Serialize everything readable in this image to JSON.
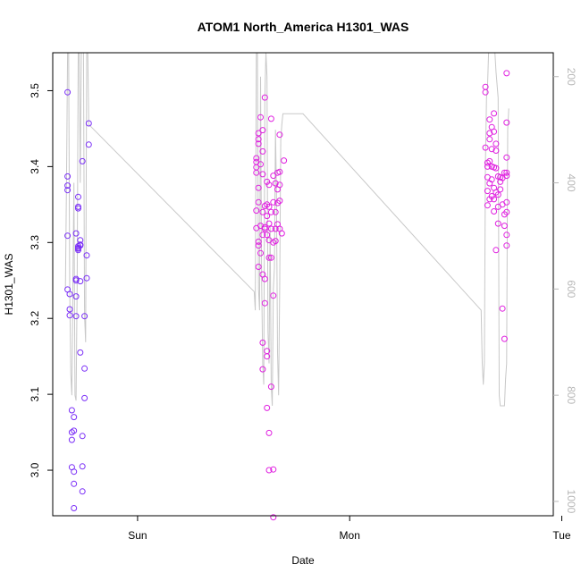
{
  "chart_data": {
    "type": "scatter",
    "title": "ATOM1 North_America H1301_WAS",
    "xlabel": "Date",
    "ylabel": "H1301_WAS",
    "x_ticks": [
      "Sun",
      "Mon",
      "Tue"
    ],
    "y_ticks": [
      "3.0",
      "3.1",
      "3.2",
      "3.3",
      "3.4",
      "3.5"
    ],
    "ylim": [
      2.94,
      3.55
    ],
    "y2_ticks": [
      "200",
      "400",
      "600",
      "800",
      "1000"
    ],
    "y2lim": [
      1027,
      155
    ],
    "y2_reversed": true,
    "grid": false,
    "colors": {
      "line": "#c8c8c8",
      "axis": "#000000",
      "right_axis": "#b8b8b8",
      "points_early": "#7b2ff7",
      "points_late": "#e020e0"
    },
    "x_scale": "days",
    "x_tick_positions": [
      0,
      1,
      2
    ],
    "xlim": [
      -0.4,
      1.96
    ],
    "series": [
      {
        "kind": "points",
        "color": "#7b2ff7",
        "points": [
          [
            -0.33,
            3.498
          ],
          [
            -0.33,
            3.375
          ],
          [
            -0.33,
            3.369
          ],
          [
            -0.33,
            3.387
          ],
          [
            -0.33,
            3.309
          ],
          [
            -0.33,
            3.238
          ],
          [
            -0.32,
            3.232
          ],
          [
            -0.32,
            3.204
          ],
          [
            -0.32,
            3.212
          ],
          [
            -0.31,
            3.079
          ],
          [
            -0.31,
            3.04
          ],
          [
            -0.31,
            3.05
          ],
          [
            -0.31,
            3.004
          ],
          [
            -0.3,
            2.998
          ],
          [
            -0.3,
            2.982
          ],
          [
            -0.3,
            2.95
          ],
          [
            -0.3,
            3.07
          ],
          [
            -0.3,
            3.052
          ],
          [
            -0.29,
            3.312
          ],
          [
            -0.29,
            3.252
          ],
          [
            -0.29,
            3.25
          ],
          [
            -0.29,
            3.229
          ],
          [
            -0.29,
            3.203
          ],
          [
            -0.28,
            3.36
          ],
          [
            -0.28,
            3.347
          ],
          [
            -0.28,
            3.345
          ],
          [
            -0.28,
            3.295
          ],
          [
            -0.28,
            3.293
          ],
          [
            -0.28,
            3.292
          ],
          [
            -0.28,
            3.29
          ],
          [
            -0.27,
            3.303
          ],
          [
            -0.27,
            3.297
          ],
          [
            -0.27,
            3.297
          ],
          [
            -0.27,
            3.296
          ],
          [
            -0.27,
            3.249
          ],
          [
            -0.27,
            3.155
          ],
          [
            -0.26,
            3.407
          ],
          [
            -0.26,
            3.045
          ],
          [
            -0.26,
            3.005
          ],
          [
            -0.26,
            2.972
          ],
          [
            -0.25,
            3.203
          ],
          [
            -0.25,
            3.134
          ],
          [
            -0.25,
            3.095
          ],
          [
            -0.24,
            3.283
          ],
          [
            -0.24,
            3.253
          ],
          [
            -0.23,
            3.429
          ],
          [
            -0.23,
            3.457
          ]
        ]
      },
      {
        "kind": "points",
        "color": "#e020e0",
        "points": [
          [
            0.56,
            3.411
          ],
          [
            0.56,
            3.406
          ],
          [
            0.56,
            3.399
          ],
          [
            0.56,
            3.392
          ],
          [
            0.56,
            3.342
          ],
          [
            0.56,
            3.319
          ],
          [
            0.57,
            3.436
          ],
          [
            0.57,
            3.444
          ],
          [
            0.57,
            3.43
          ],
          [
            0.57,
            3.372
          ],
          [
            0.57,
            3.353
          ],
          [
            0.57,
            3.296
          ],
          [
            0.57,
            3.301
          ],
          [
            0.57,
            3.268
          ],
          [
            0.58,
            3.403
          ],
          [
            0.58,
            3.322
          ],
          [
            0.58,
            3.286
          ],
          [
            0.58,
            3.465
          ],
          [
            0.59,
            3.448
          ],
          [
            0.59,
            3.42
          ],
          [
            0.59,
            3.39
          ],
          [
            0.59,
            3.34
          ],
          [
            0.59,
            3.31
          ],
          [
            0.59,
            3.258
          ],
          [
            0.59,
            3.168
          ],
          [
            0.59,
            3.133
          ],
          [
            0.6,
            3.491
          ],
          [
            0.6,
            3.348
          ],
          [
            0.6,
            3.318
          ],
          [
            0.6,
            3.252
          ],
          [
            0.6,
            3.22
          ],
          [
            0.6,
            3.32
          ],
          [
            0.61,
            3.38
          ],
          [
            0.61,
            3.35
          ],
          [
            0.61,
            3.335
          ],
          [
            0.61,
            3.31
          ],
          [
            0.61,
            3.157
          ],
          [
            0.61,
            3.15
          ],
          [
            0.61,
            3.082
          ],
          [
            0.62,
            3.376
          ],
          [
            0.62,
            3.347
          ],
          [
            0.62,
            3.325
          ],
          [
            0.62,
            3.303
          ],
          [
            0.62,
            3.28
          ],
          [
            0.62,
            3.049
          ],
          [
            0.62,
            3.0
          ],
          [
            0.63,
            3.463
          ],
          [
            0.63,
            3.34
          ],
          [
            0.63,
            3.318
          ],
          [
            0.63,
            3.28
          ],
          [
            0.63,
            3.11
          ],
          [
            0.64,
            3.388
          ],
          [
            0.64,
            3.353
          ],
          [
            0.64,
            3.3
          ],
          [
            0.64,
            3.23
          ],
          [
            0.64,
            3.001
          ],
          [
            0.64,
            2.938
          ],
          [
            0.65,
            3.378
          ],
          [
            0.65,
            3.34
          ],
          [
            0.65,
            3.318
          ],
          [
            0.65,
            3.302
          ],
          [
            0.66,
            3.392
          ],
          [
            0.66,
            3.37
          ],
          [
            0.66,
            3.352
          ],
          [
            0.66,
            3.324
          ],
          [
            0.67,
            3.442
          ],
          [
            0.67,
            3.393
          ],
          [
            0.67,
            3.376
          ],
          [
            0.67,
            3.355
          ],
          [
            0.67,
            3.318
          ],
          [
            0.68,
            3.312
          ],
          [
            0.69,
            3.408
          ]
        ]
      },
      {
        "kind": "points",
        "color": "#e020e0",
        "points": [
          [
            1.64,
            3.505
          ],
          [
            1.64,
            3.498
          ],
          [
            1.64,
            3.425
          ],
          [
            1.65,
            3.405
          ],
          [
            1.65,
            3.4
          ],
          [
            1.65,
            3.386
          ],
          [
            1.65,
            3.368
          ],
          [
            1.65,
            3.349
          ],
          [
            1.66,
            3.462
          ],
          [
            1.66,
            3.444
          ],
          [
            1.66,
            3.436
          ],
          [
            1.66,
            3.407
          ],
          [
            1.66,
            3.378
          ],
          [
            1.66,
            3.357
          ],
          [
            1.67,
            3.452
          ],
          [
            1.67,
            3.423
          ],
          [
            1.67,
            3.4
          ],
          [
            1.67,
            3.383
          ],
          [
            1.67,
            3.361
          ],
          [
            1.68,
            3.47
          ],
          [
            1.68,
            3.446
          ],
          [
            1.68,
            3.399
          ],
          [
            1.68,
            3.372
          ],
          [
            1.68,
            3.357
          ],
          [
            1.68,
            3.341
          ],
          [
            1.69,
            3.43
          ],
          [
            1.69,
            3.421
          ],
          [
            1.69,
            3.398
          ],
          [
            1.69,
            3.366
          ],
          [
            1.69,
            3.29
          ],
          [
            1.7,
            3.387
          ],
          [
            1.7,
            3.363
          ],
          [
            1.7,
            3.347
          ],
          [
            1.7,
            3.325
          ],
          [
            1.71,
            3.386
          ],
          [
            1.71,
            3.38
          ],
          [
            1.71,
            3.37
          ],
          [
            1.72,
            3.385
          ],
          [
            1.72,
            3.35
          ],
          [
            1.72,
            3.213
          ],
          [
            1.73,
            3.392
          ],
          [
            1.73,
            3.173
          ],
          [
            1.73,
            3.337
          ],
          [
            1.73,
            3.322
          ],
          [
            1.74,
            3.523
          ],
          [
            1.74,
            3.458
          ],
          [
            1.74,
            3.412
          ],
          [
            1.74,
            3.392
          ],
          [
            1.74,
            3.388
          ],
          [
            1.74,
            3.353
          ],
          [
            1.74,
            3.34
          ],
          [
            1.74,
            3.31
          ],
          [
            1.74,
            3.296
          ]
        ]
      },
      {
        "kind": "line",
        "axis": "right",
        "color": "#c8c8c8",
        "points": [
          [
            -0.34,
            600
          ],
          [
            -0.335,
            400
          ],
          [
            -0.33,
            155
          ],
          [
            -0.325,
            155
          ],
          [
            -0.32,
            600
          ],
          [
            -0.315,
            760
          ],
          [
            -0.31,
            800
          ],
          [
            -0.305,
            600
          ],
          [
            -0.3,
            400
          ],
          [
            -0.295,
            800
          ],
          [
            -0.29,
            810
          ],
          [
            -0.285,
            600
          ],
          [
            -0.28,
            155
          ],
          [
            -0.275,
            155
          ],
          [
            -0.27,
            400
          ],
          [
            -0.265,
            155
          ],
          [
            -0.26,
            155
          ],
          [
            -0.255,
            155
          ],
          [
            -0.25,
            650
          ],
          [
            -0.245,
            700
          ],
          [
            -0.24,
            155
          ],
          [
            -0.235,
            155
          ],
          [
            -0.23,
            290
          ],
          [
            0.55,
            605
          ],
          [
            0.555,
            640
          ],
          [
            0.56,
            155
          ],
          [
            0.565,
            155
          ],
          [
            0.57,
            600
          ],
          [
            0.575,
            640
          ],
          [
            0.58,
            200
          ],
          [
            0.585,
            580
          ],
          [
            0.59,
            740
          ],
          [
            0.595,
            780
          ],
          [
            0.6,
            240
          ],
          [
            0.605,
            155
          ],
          [
            0.61,
            200
          ],
          [
            0.615,
            680
          ],
          [
            0.62,
            740
          ],
          [
            0.625,
            480
          ],
          [
            0.63,
            780
          ],
          [
            0.635,
            820
          ],
          [
            0.64,
            600
          ],
          [
            0.645,
            560
          ],
          [
            0.65,
            300
          ],
          [
            0.655,
            420
          ],
          [
            0.66,
            720
          ],
          [
            0.665,
            800
          ],
          [
            0.67,
            600
          ],
          [
            0.675,
            320
          ],
          [
            0.68,
            290
          ],
          [
            0.685,
            270
          ],
          [
            0.69,
            270
          ],
          [
            0.78,
            270
          ],
          [
            1.62,
            640
          ],
          [
            1.625,
            740
          ],
          [
            1.63,
            780
          ],
          [
            1.635,
            740
          ],
          [
            1.64,
            360
          ],
          [
            1.645,
            240
          ],
          [
            1.65,
            220
          ],
          [
            1.655,
            155
          ],
          [
            1.66,
            155
          ],
          [
            1.665,
            155
          ],
          [
            1.67,
            155
          ],
          [
            1.675,
            155
          ],
          [
            1.68,
            155
          ],
          [
            1.685,
            155
          ],
          [
            1.69,
            190
          ],
          [
            1.7,
            240
          ],
          [
            1.705,
            800
          ],
          [
            1.71,
            820
          ],
          [
            1.73,
            820
          ],
          [
            1.735,
            770
          ],
          [
            1.74,
            740
          ],
          [
            1.745,
            300
          ],
          [
            1.75,
            260
          ]
        ]
      }
    ]
  }
}
